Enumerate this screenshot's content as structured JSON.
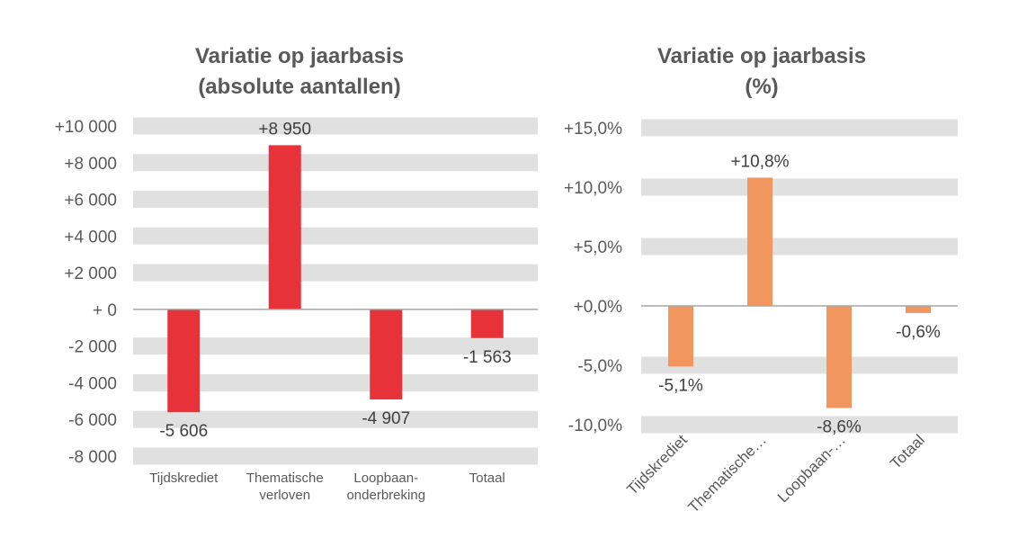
{
  "chart_data": [
    {
      "type": "bar",
      "title": [
        "Variatie op jaarbasis",
        "(absolute aantallen)"
      ],
      "categories": [
        [
          "Tijdskrediet"
        ],
        [
          "Thematische",
          "verloven"
        ],
        [
          "Loopbaan-",
          "onderbreking"
        ],
        [
          "Totaal"
        ]
      ],
      "values": [
        -5606,
        8950,
        -4907,
        -1563
      ],
      "data_labels": [
        "-5 606",
        "+8 950",
        "-4 907",
        "-1 563"
      ],
      "ylim": [
        -8000,
        10000
      ],
      "yticks": [
        10000,
        8000,
        6000,
        4000,
        2000,
        0,
        -2000,
        -4000,
        -6000,
        -8000
      ],
      "ytick_labels": [
        "+10 000",
        "+8 000",
        "+6 000",
        "+4 000",
        "+2 000",
        "+ 0",
        "-2 000",
        "-4 000",
        "-6 000",
        "-8 000"
      ],
      "grid": "alternating bands",
      "color": "#E8323A"
    },
    {
      "type": "bar",
      "title": [
        "Variatie op jaarbasis",
        "(%)"
      ],
      "categories": [
        "Tijdskrediet",
        "Thematische…",
        "Loopbaan-…",
        "Totaal"
      ],
      "values": [
        -5.1,
        10.8,
        -8.6,
        -0.6
      ],
      "data_labels": [
        "-5,1%",
        "+10,8%",
        "-8,6%",
        "-0,6%"
      ],
      "ylim": [
        -10,
        15
      ],
      "yticks": [
        15,
        10,
        5,
        0,
        -5,
        -10
      ],
      "ytick_labels": [
        "+15,0%",
        "+10,0%",
        "+5,0%",
        "+0,0%",
        "-5,0%",
        "-10,0%"
      ],
      "grid": "alternating bands",
      "color": "#F0965E"
    }
  ]
}
